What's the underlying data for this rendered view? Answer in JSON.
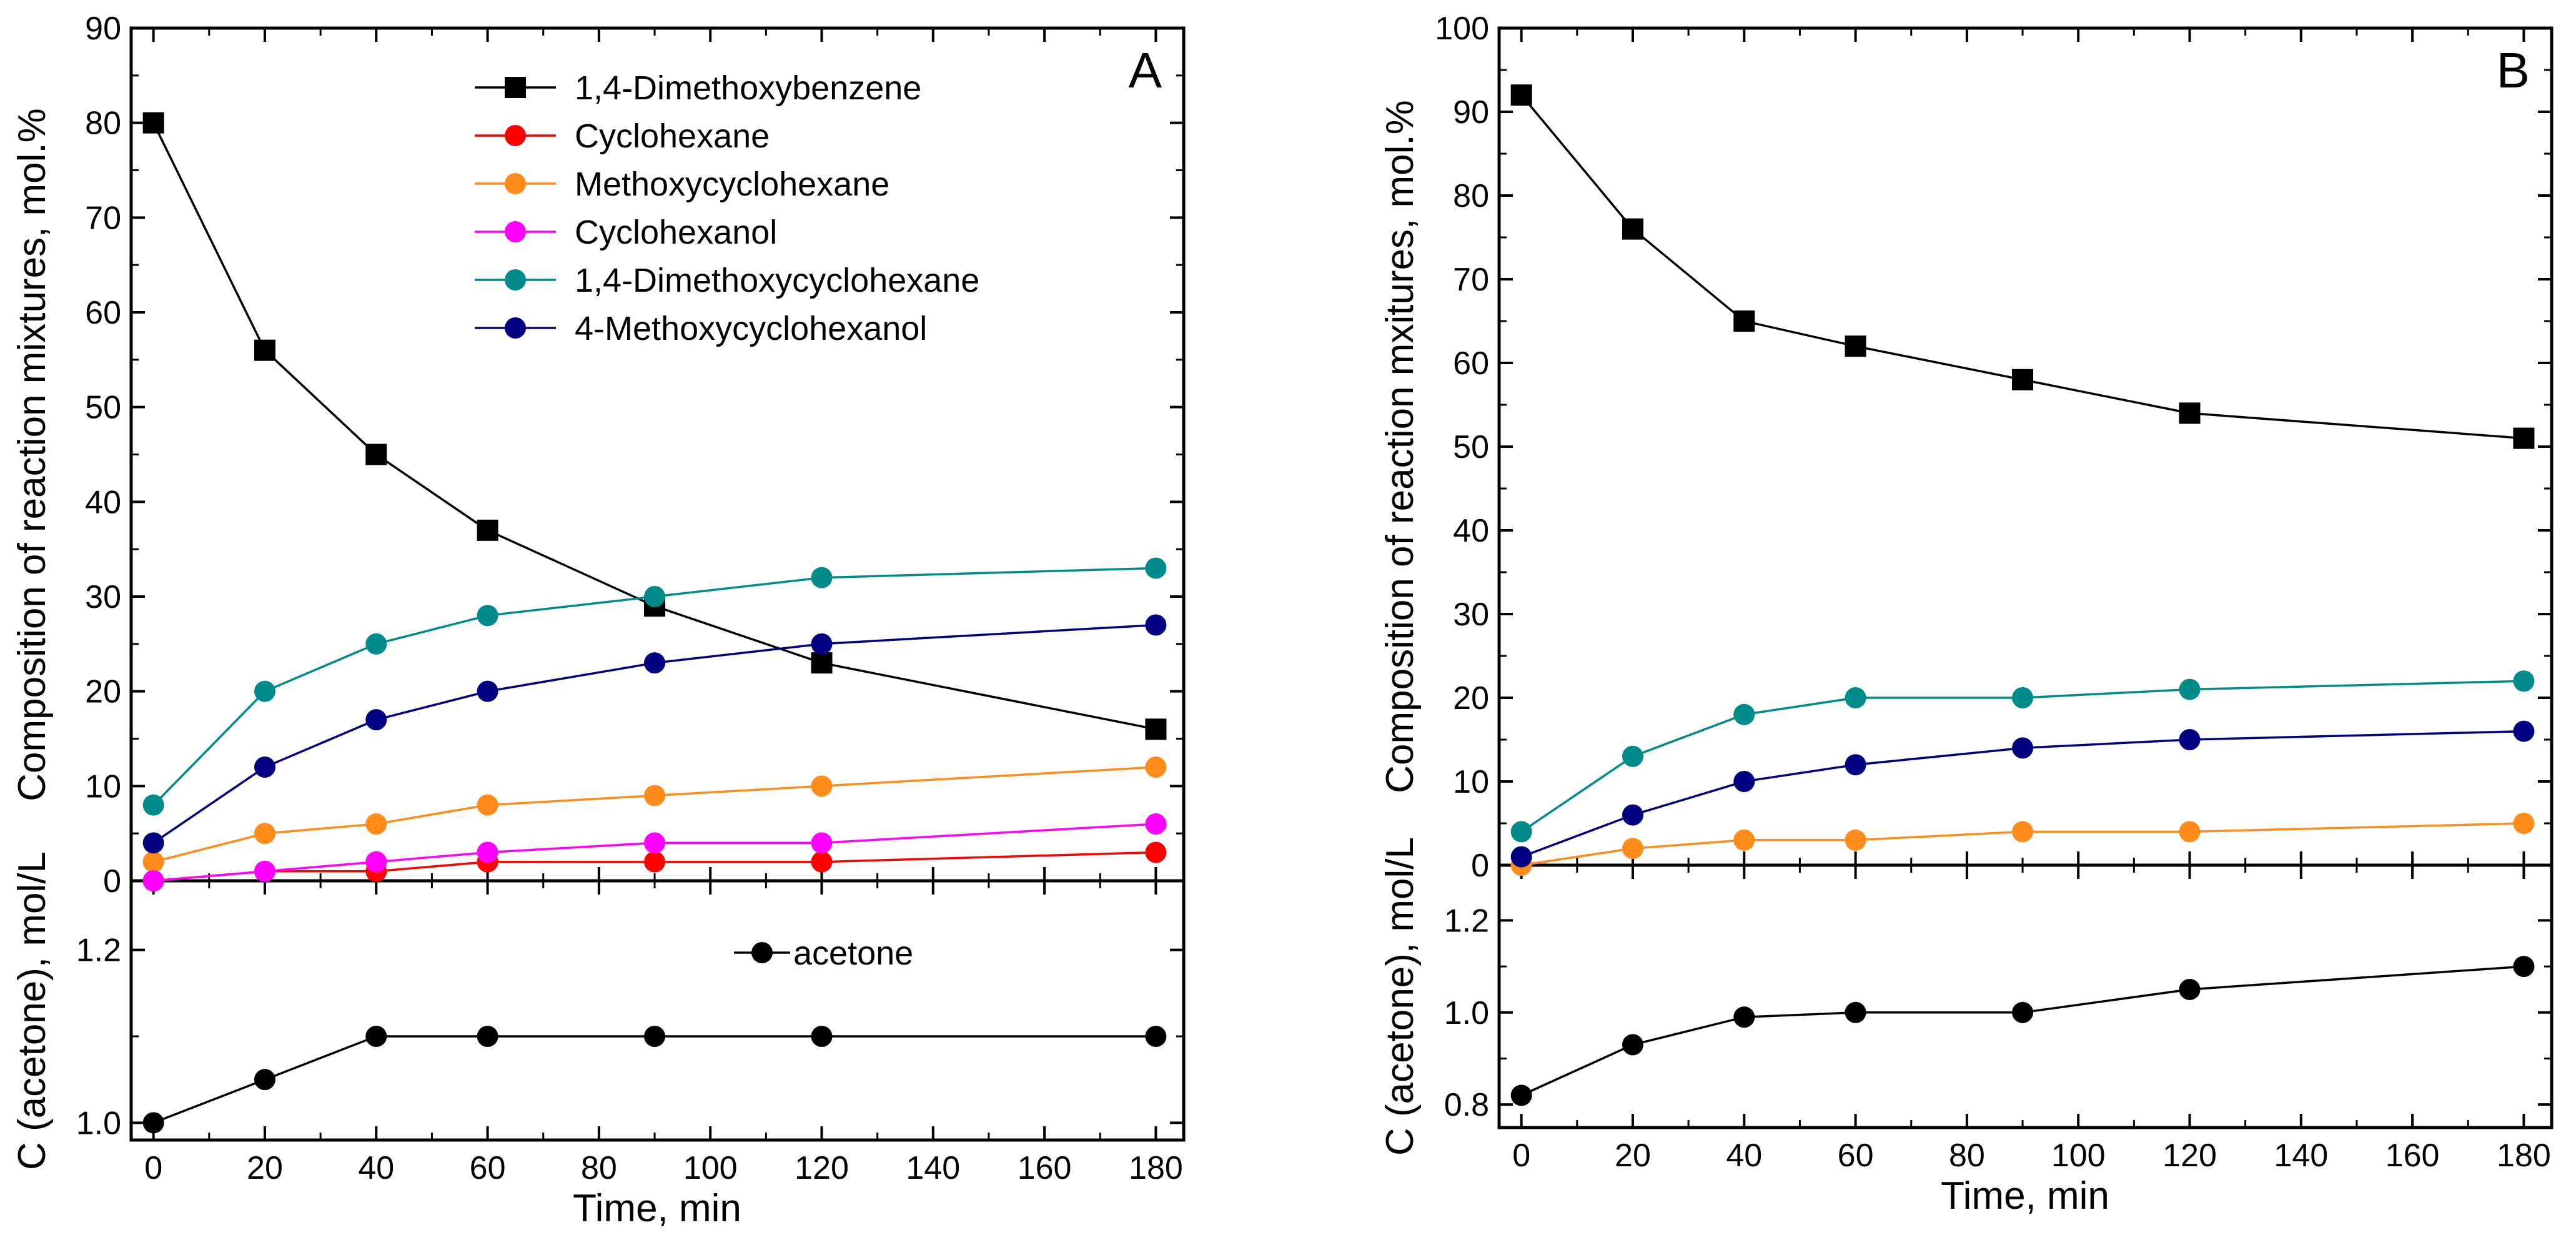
{
  "chart_data": [
    {
      "type": "line",
      "panel": "A",
      "xlabel": "Time, min",
      "x_ticks": [
        0,
        20,
        40,
        60,
        80,
        100,
        120,
        140,
        160,
        180
      ],
      "xlim": [
        -4,
        185
      ],
      "top": {
        "ylabel": "Composition of reaction mixtures, mol.%",
        "ylim": [
          0,
          90
        ],
        "y_ticks": [
          0,
          10,
          20,
          30,
          40,
          50,
          60,
          70,
          80,
          90
        ],
        "x": [
          0,
          20,
          40,
          60,
          90,
          120,
          180
        ],
        "legend": "top-right",
        "series": [
          {
            "name": "1,4-Dimethoxybenzene",
            "marker": "square",
            "color": "#000000",
            "values": [
              80,
              56,
              45,
              37,
              29,
              23,
              16
            ]
          },
          {
            "name": "Cyclohexane",
            "marker": "circle",
            "color": "#ff0000",
            "values": [
              0,
              1,
              1,
              2,
              2,
              2,
              3
            ]
          },
          {
            "name": "Methoxycyclohexane",
            "marker": "circle",
            "color": "#ff8c1a",
            "values": [
              2,
              5,
              6,
              8,
              9,
              10,
              12
            ]
          },
          {
            "name": "Cyclohexanol",
            "marker": "circle",
            "color": "#ff00ff",
            "values": [
              0,
              1,
              2,
              3,
              4,
              4,
              6
            ]
          },
          {
            "name": "1,4-Dimethoxycyclohexane",
            "marker": "circle",
            "color": "#008b8b",
            "values": [
              8,
              20,
              25,
              28,
              30,
              32,
              33
            ]
          },
          {
            "name": "4-Methoxycyclohexanol",
            "marker": "circle",
            "color": "#000080",
            "values": [
              4,
              12,
              17,
              20,
              23,
              25,
              27
            ]
          }
        ]
      },
      "bottom": {
        "ylabel": "C (acetone), mol/L",
        "ylim": [
          0.98,
          1.28
        ],
        "y_ticks": [
          1.0,
          1.2
        ],
        "y_tick_labels": [
          "1.0",
          "1.2"
        ],
        "x": [
          0,
          20,
          40,
          60,
          90,
          120,
          180
        ],
        "legend": "top-center",
        "series": [
          {
            "name": "acetone",
            "marker": "circle",
            "color": "#000000",
            "values": [
              1.0,
              1.05,
              1.1,
              1.1,
              1.1,
              1.1,
              1.1
            ]
          }
        ]
      }
    },
    {
      "type": "line",
      "panel": "B",
      "xlabel": "Time, min",
      "x_ticks": [
        0,
        20,
        40,
        60,
        80,
        100,
        120,
        140,
        160,
        180
      ],
      "xlim": [
        -4,
        185
      ],
      "top": {
        "ylabel": "Composition of reaction mxitures, mol.%",
        "ylim": [
          0,
          100
        ],
        "y_ticks": [
          0,
          10,
          20,
          30,
          40,
          50,
          60,
          70,
          80,
          90,
          100
        ],
        "x": [
          0,
          20,
          40,
          60,
          90,
          120,
          180
        ],
        "series": [
          {
            "name": "1,4-Dimethoxybenzene",
            "marker": "square",
            "color": "#000000",
            "values": [
              92,
              76,
              65,
              62,
              58,
              54,
              51
            ]
          },
          {
            "name": "Methoxycyclohexane",
            "marker": "circle",
            "color": "#ff8c1a",
            "values": [
              0,
              2,
              3,
              3,
              4,
              4,
              5
            ]
          },
          {
            "name": "1,4-Dimethoxycyclohexane",
            "marker": "circle",
            "color": "#008b8b",
            "values": [
              4,
              13,
              18,
              20,
              20,
              21,
              22
            ]
          },
          {
            "name": "4-Methoxycyclohexanol",
            "marker": "circle",
            "color": "#000080",
            "values": [
              1,
              6,
              10,
              12,
              14,
              15,
              16
            ]
          }
        ]
      },
      "bottom": {
        "ylabel": "C (acetone), mol/L",
        "ylim": [
          0.75,
          1.32
        ],
        "y_ticks": [
          0.8,
          1.0,
          1.2
        ],
        "y_tick_labels": [
          "0.8",
          "1.0",
          "1.2"
        ],
        "x": [
          0,
          20,
          40,
          60,
          90,
          120,
          180
        ],
        "series": [
          {
            "name": "acetone",
            "marker": "circle",
            "color": "#000000",
            "values": [
              0.82,
              0.93,
              0.99,
              1.0,
              1.0,
              1.05,
              1.1
            ]
          }
        ]
      }
    }
  ]
}
